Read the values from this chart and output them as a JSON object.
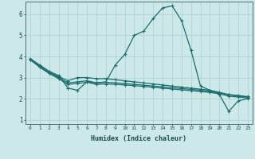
{
  "xlabel": "Humidex (Indice chaleur)",
  "ylabel": "",
  "xlim": [
    -0.5,
    23.5
  ],
  "ylim": [
    0.8,
    6.6
  ],
  "xticks": [
    0,
    1,
    2,
    3,
    4,
    5,
    6,
    7,
    8,
    9,
    10,
    11,
    12,
    13,
    14,
    15,
    16,
    17,
    18,
    19,
    20,
    21,
    22,
    23
  ],
  "yticks": [
    1,
    2,
    3,
    4,
    5,
    6
  ],
  "bg_color": "#cce8e8",
  "line_color": "#1a6e6e",
  "grid_color": "#aacfcf",
  "line1": [
    3.9,
    3.6,
    3.3,
    3.1,
    2.5,
    2.4,
    2.8,
    2.75,
    2.8,
    3.6,
    4.1,
    5.0,
    5.2,
    5.8,
    6.3,
    6.4,
    5.7,
    4.3,
    2.6,
    2.4,
    2.2,
    1.4,
    1.9,
    2.0
  ],
  "line2": [
    3.85,
    3.55,
    3.25,
    3.05,
    2.85,
    3.0,
    3.0,
    2.95,
    2.95,
    2.9,
    2.85,
    2.8,
    2.75,
    2.7,
    2.65,
    2.6,
    2.55,
    2.5,
    2.45,
    2.4,
    2.3,
    2.2,
    2.15,
    2.1
  ],
  "line3": [
    3.85,
    3.5,
    3.2,
    3.0,
    2.75,
    2.8,
    2.85,
    2.75,
    2.78,
    2.75,
    2.72,
    2.68,
    2.64,
    2.6,
    2.56,
    2.52,
    2.48,
    2.44,
    2.4,
    2.35,
    2.28,
    2.18,
    2.12,
    2.08
  ],
  "line4": [
    3.85,
    3.5,
    3.2,
    2.95,
    2.68,
    2.72,
    2.78,
    2.68,
    2.7,
    2.68,
    2.65,
    2.62,
    2.58,
    2.54,
    2.5,
    2.46,
    2.42,
    2.38,
    2.34,
    2.3,
    2.23,
    2.12,
    2.08,
    2.04
  ]
}
